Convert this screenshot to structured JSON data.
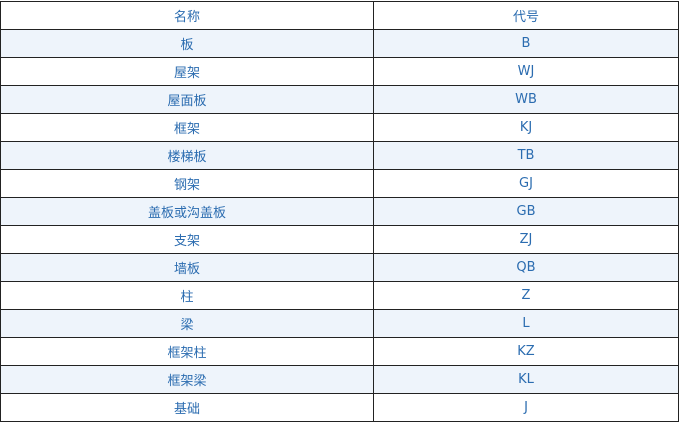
{
  "table": {
    "headers": [
      "名称",
      "代号"
    ],
    "rows": [
      [
        "板",
        "B"
      ],
      [
        "屋架",
        "WJ"
      ],
      [
        "屋面板",
        "WB"
      ],
      [
        "框架",
        "KJ"
      ],
      [
        "楼梯板",
        "TB"
      ],
      [
        "钢架",
        "GJ"
      ],
      [
        "盖板或沟盖板",
        "GB"
      ],
      [
        "支架",
        "ZJ"
      ],
      [
        "墙板",
        "QB"
      ],
      [
        "柱",
        "Z"
      ],
      [
        "梁",
        "L"
      ],
      [
        "框架柱",
        "KZ"
      ],
      [
        "框架梁",
        "KL"
      ],
      [
        "基础",
        "J"
      ]
    ]
  }
}
